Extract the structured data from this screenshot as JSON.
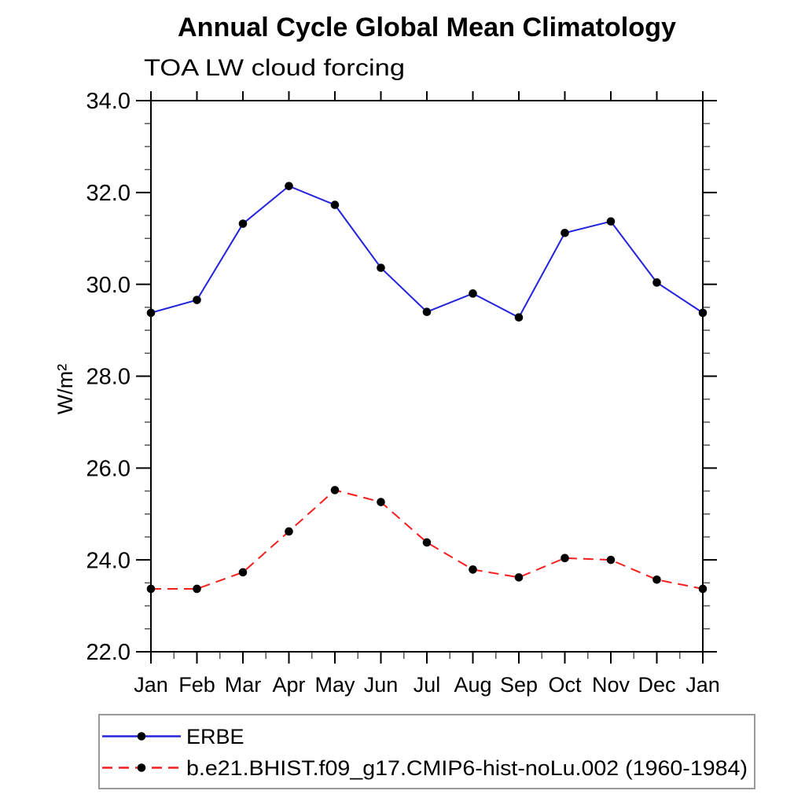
{
  "page": {
    "background": "#ffffff"
  },
  "chart_data": {
    "type": "line",
    "title": "Annual Cycle Global Mean Climatology",
    "subtitle": "TOA LW cloud forcing",
    "ylabel": "W/m²",
    "x_categories": [
      "Jan",
      "Feb",
      "Mar",
      "Apr",
      "May",
      "Jun",
      "Jul",
      "Aug",
      "Sep",
      "Oct",
      "Nov",
      "Dec",
      "Jan"
    ],
    "ylim": [
      22.0,
      34.0
    ],
    "ytick_interval": 2.0,
    "ytick_minor_interval": 0.5,
    "ytick_labels": [
      "22.0",
      "24.0",
      "26.0",
      "28.0",
      "30.0",
      "32.0",
      "34.0"
    ],
    "grid": "off",
    "legend_position": "bottom-left",
    "axis_color": "#000000",
    "series": [
      {
        "name": "ERBE",
        "color": "#2323dc",
        "style": "solid",
        "marker": "circle",
        "marker_color": "#000000",
        "values": [
          29.38,
          29.66,
          31.32,
          32.14,
          31.73,
          30.36,
          29.4,
          29.8,
          29.28,
          31.12,
          31.37,
          30.04,
          29.38
        ]
      },
      {
        "name": "b.e21.BHIST.f09_g17.CMIP6-hist-noLu.002 (1960-1984)",
        "color": "#f51e1e",
        "style": "dashed",
        "marker": "circle",
        "marker_color": "#000000",
        "values": [
          23.37,
          23.37,
          23.73,
          24.62,
          25.52,
          25.26,
          24.38,
          23.79,
          23.62,
          24.04,
          24.0,
          23.57,
          23.37
        ]
      }
    ]
  }
}
